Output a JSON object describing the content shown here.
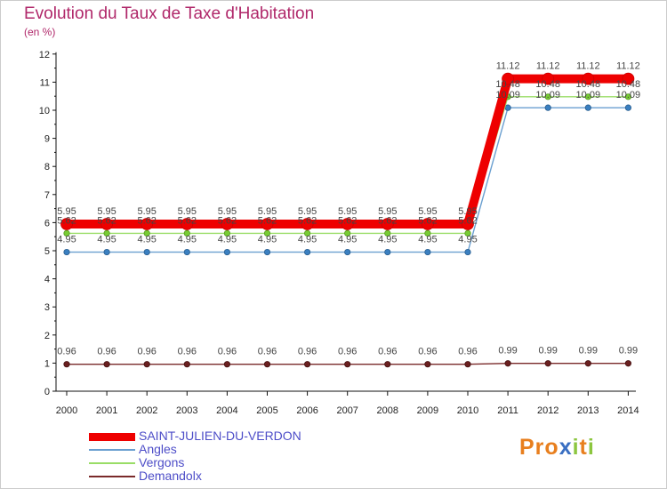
{
  "header": {
    "title": "Evolution du Taux de Taxe d'Habitation",
    "unit": "(en %)"
  },
  "logo": {
    "text": "Proxiti"
  },
  "chart_data": {
    "type": "line",
    "x": [
      "2000",
      "2001",
      "2002",
      "2003",
      "2004",
      "2005",
      "2006",
      "2007",
      "2008",
      "2009",
      "2010",
      "2011",
      "2012",
      "2013",
      "2014"
    ],
    "ylim": [
      0,
      12
    ],
    "yticks": [
      0,
      1,
      2,
      3,
      4,
      5,
      6,
      7,
      8,
      9,
      10,
      11,
      12
    ],
    "grid": false,
    "legend_position": "bottom-left",
    "series": [
      {
        "name": "SAINT-JULIEN-DU-VERDON",
        "color": "#ee0000",
        "values": [
          5.95,
          5.95,
          5.95,
          5.95,
          5.95,
          5.95,
          5.95,
          5.95,
          5.95,
          5.95,
          5.95,
          11.12,
          11.12,
          11.12,
          11.12
        ]
      },
      {
        "name": "Angles",
        "color": "#6a9fd0",
        "values": [
          4.95,
          4.95,
          4.95,
          4.95,
          4.95,
          4.95,
          4.95,
          4.95,
          4.95,
          4.95,
          4.95,
          10.09,
          10.09,
          10.09,
          10.09
        ]
      },
      {
        "name": "Vergons",
        "color": "#99dd66",
        "values": [
          5.62,
          5.62,
          5.62,
          5.62,
          5.62,
          5.62,
          5.62,
          5.62,
          5.62,
          5.62,
          5.62,
          10.48,
          10.48,
          10.48,
          10.48
        ]
      },
      {
        "name": "Demandolx",
        "color": "#7a2a2a",
        "values": [
          0.96,
          0.96,
          0.96,
          0.96,
          0.96,
          0.96,
          0.96,
          0.96,
          0.96,
          0.96,
          0.96,
          0.99,
          0.99,
          0.99,
          0.99
        ]
      }
    ]
  }
}
